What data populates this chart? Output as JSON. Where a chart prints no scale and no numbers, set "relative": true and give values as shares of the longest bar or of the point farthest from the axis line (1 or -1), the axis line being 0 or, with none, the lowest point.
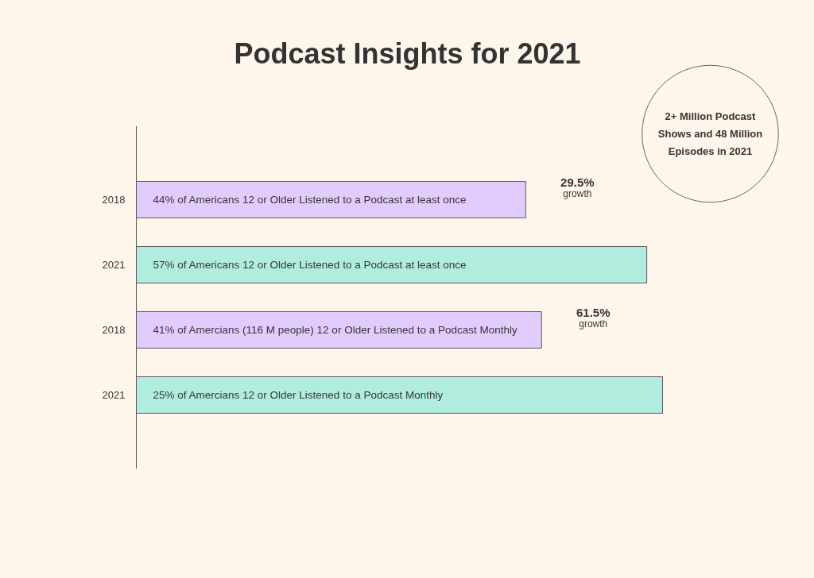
{
  "chart_data": {
    "type": "bar",
    "orientation": "horizontal",
    "relative": true,
    "title": "Podcast Insights for 2021",
    "categories": [
      "2018",
      "2021",
      "2018",
      "2021"
    ],
    "values": [
      0.74,
      0.97,
      0.77,
      1
    ],
    "colors": [
      "#e2ccfd",
      "#b1eddf",
      "#e2ccfd",
      "#b1eddf"
    ],
    "annotations": [
      "44% of Americans 12 or Older Listened to a Podcast at least once",
      "57% of Americans 12 or Older Listened to a Podcast at least once",
      "41% of Amercians (116 M people) 12 or Older Listened to a Podcast Monthly",
      "25% of Amercians 12 or Older Listened to a Podcast Monthly",
      "29.5%\ngrowth",
      "61.5%\ngrowth",
      "2+ Million Podcast Shows and 48 Million Episodes in 2021"
    ]
  }
}
